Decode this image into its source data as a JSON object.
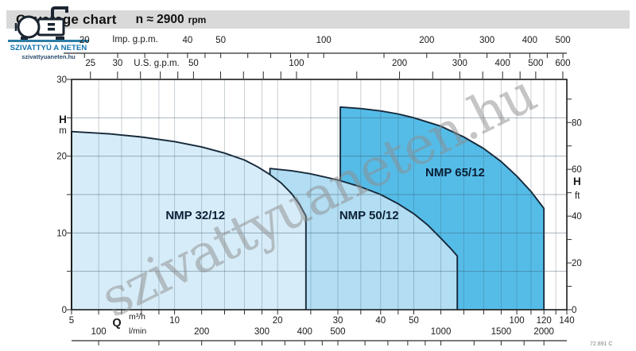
{
  "title": {
    "main": "Coverage chart",
    "speed": "n ≈ 2900",
    "unit": "rpm"
  },
  "site_logo": {
    "name": "SZIVATTYÚ A NETEN",
    "url": "szivattyuaneten.hu",
    "name_color": "#1173b2",
    "line_color": "#2e7da6",
    "icon": "pump-icon"
  },
  "watermark": {
    "text": "szivattyuaneten.hu",
    "color": "#8d8d8d"
  },
  "doc_code": "72.891 C",
  "chart_data": {
    "type": "area",
    "x_scale": "log",
    "x_range_m3h": [
      5,
      140
    ],
    "y_range_m": [
      0,
      30
    ],
    "grid": "on",
    "colors": {
      "border": "#16293a",
      "frame": "#1b1b1b",
      "label_text": "#0b1f35"
    },
    "axes": {
      "imp_gpm": {
        "title": "Imp. g.p.m.",
        "factor": 3.6662,
        "ticks": [
          20,
          25,
          30,
          35,
          40,
          45,
          50,
          60,
          70,
          80,
          90,
          100,
          150,
          200,
          250,
          300,
          350,
          400,
          450,
          500
        ],
        "labels": [
          20,
          40,
          50,
          100,
          200,
          300,
          400,
          500
        ]
      },
      "us_gpm": {
        "title": "U.S. g.p.m.",
        "factor": 4.4029,
        "ticks": [
          25,
          30,
          35,
          40,
          45,
          50,
          60,
          70,
          80,
          90,
          100,
          150,
          200,
          250,
          300,
          350,
          400,
          450,
          500,
          600
        ],
        "labels": [
          25,
          30,
          50,
          100,
          200,
          300,
          400,
          500,
          600
        ]
      },
      "h_m": {
        "title": "H",
        "unit": "m",
        "ticks": [
          0,
          5,
          10,
          15,
          20,
          25,
          30
        ],
        "labels": [
          0,
          10,
          20,
          30
        ]
      },
      "h_ft": {
        "title": "H",
        "unit": "ft",
        "factor": 3.2808,
        "ticks": [
          0,
          10,
          20,
          30,
          40,
          50,
          60,
          70,
          80,
          90
        ],
        "labels": [
          0,
          20,
          40,
          60,
          80
        ]
      },
      "q_m3h": {
        "title": "Q",
        "unit": "m³/h",
        "ticks": [
          5,
          6,
          7,
          8,
          9,
          10,
          12,
          14,
          16,
          18,
          20,
          25,
          30,
          35,
          40,
          45,
          50,
          60,
          70,
          80,
          90,
          100,
          110,
          120,
          130,
          140
        ],
        "labels": [
          5,
          10,
          20,
          30,
          40,
          50,
          100,
          120,
          140
        ]
      },
      "q_lmin": {
        "unit": "l/min",
        "factor": 16.667,
        "ticks": [
          100,
          150,
          200,
          250,
          300,
          350,
          400,
          450,
          500,
          600,
          700,
          800,
          900,
          1000,
          1250,
          1500,
          1750,
          2000
        ],
        "labels": [
          100,
          200,
          300,
          400,
          500,
          1000,
          1500,
          2000
        ]
      }
    },
    "series": [
      {
        "name": "NMP 32/12",
        "fill": "#d6ecf8",
        "label_pos": [
          11.5,
          12.3
        ],
        "q_min": 5,
        "q_max": 24.2,
        "top_curve": [
          [
            5,
            23.2
          ],
          [
            6.5,
            22.9
          ],
          [
            8,
            22.5
          ],
          [
            10,
            21.9
          ],
          [
            12,
            21.2
          ],
          [
            14,
            20.4
          ],
          [
            16,
            19.5
          ],
          [
            17.5,
            18.6
          ],
          [
            19,
            17.6
          ],
          [
            20.5,
            16.5
          ],
          [
            22,
            15.1
          ],
          [
            23.2,
            13.7
          ],
          [
            24.2,
            12.2
          ]
        ]
      },
      {
        "name": "NMP 50/12",
        "fill": "#b2ddf2",
        "label_pos": [
          37,
          12.3
        ],
        "q_min": 19,
        "q_max": 67,
        "top_curve": [
          [
            19,
            18.4
          ],
          [
            22,
            18.1
          ],
          [
            25,
            17.7
          ],
          [
            30,
            16.9
          ],
          [
            35,
            16.0
          ],
          [
            40,
            15.0
          ],
          [
            45,
            13.8
          ],
          [
            50,
            12.5
          ],
          [
            55,
            11.0
          ],
          [
            60,
            9.3
          ],
          [
            64,
            8.0
          ],
          [
            67,
            7.0
          ]
        ]
      },
      {
        "name": "NMP 65/12",
        "fill": "#55bce8",
        "label_pos": [
          66,
          17.9
        ],
        "q_min": 30.5,
        "q_max": 120,
        "top_curve": [
          [
            30.5,
            26.4
          ],
          [
            35,
            26.2
          ],
          [
            40,
            25.9
          ],
          [
            45,
            25.5
          ],
          [
            50,
            25.0
          ],
          [
            60,
            23.9
          ],
          [
            70,
            22.5
          ],
          [
            80,
            21.0
          ],
          [
            90,
            19.3
          ],
          [
            100,
            17.4
          ],
          [
            110,
            15.4
          ],
          [
            120,
            13.2
          ]
        ]
      }
    ]
  }
}
